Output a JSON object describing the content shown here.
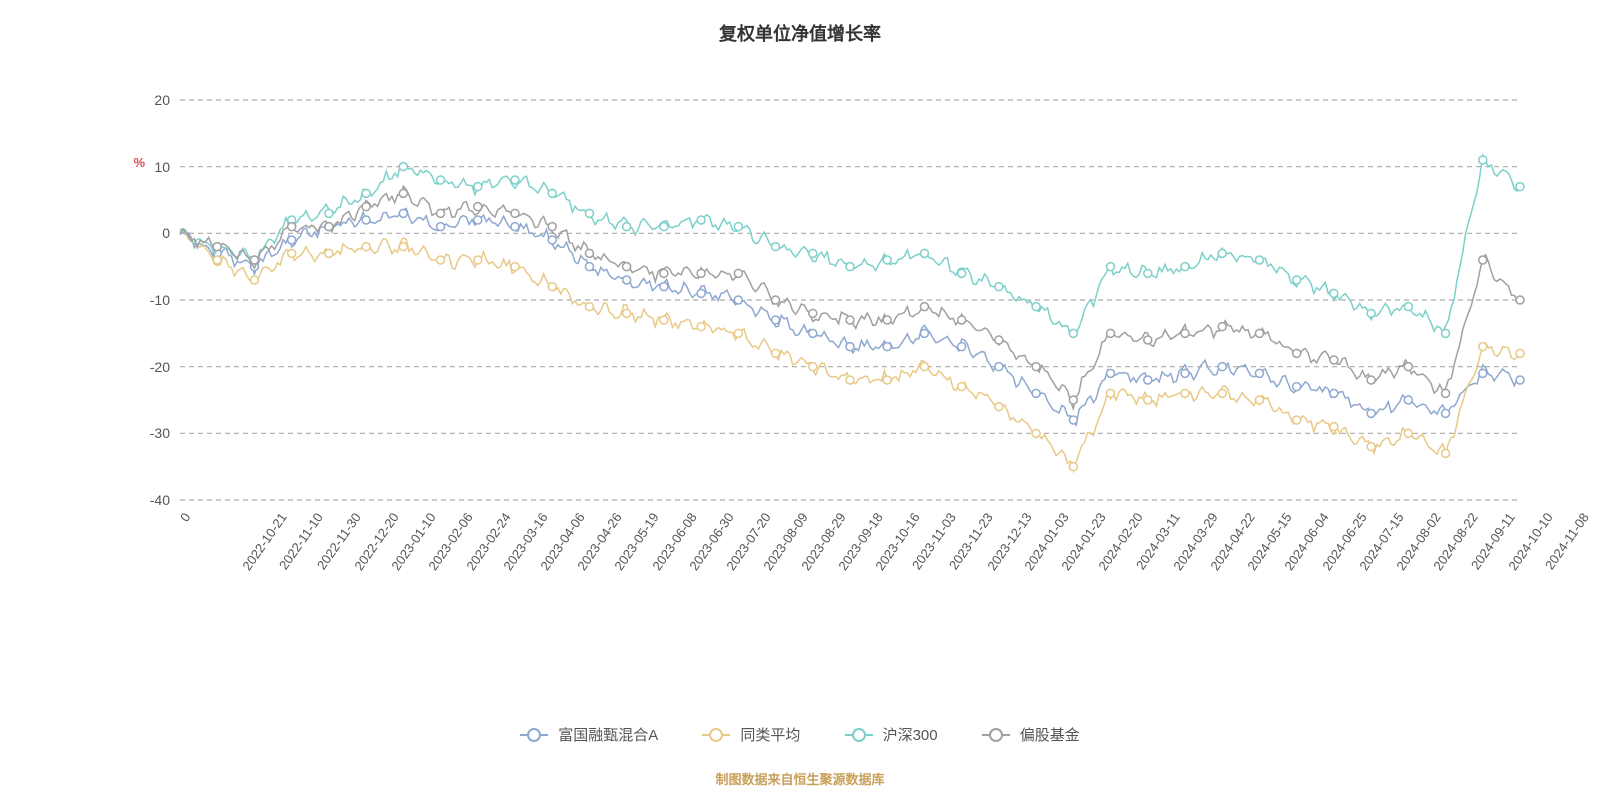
{
  "title": "复权单位净值增长率",
  "y_unit": "%",
  "footer": "制图数据来自恒生聚源数据库",
  "chart": {
    "type": "line",
    "ylim": [
      -40,
      20
    ],
    "ytick_step": 10,
    "yticks": [
      20,
      10,
      0,
      -10,
      -20,
      -30,
      -40
    ],
    "background": "#ffffff",
    "grid_color": "#aaaaaa",
    "grid_dash": "5,4",
    "title_fontsize": 18,
    "label_fontsize": 14,
    "x_categories": [
      "0",
      "2022-10-21",
      "2022-11-10",
      "2022-11-30",
      "2022-12-20",
      "2023-01-10",
      "2023-02-06",
      "2023-02-24",
      "2023-03-16",
      "2023-04-06",
      "2023-04-26",
      "2023-05-19",
      "2023-06-08",
      "2023-06-30",
      "2023-07-20",
      "2023-08-09",
      "2023-08-29",
      "2023-09-18",
      "2023-10-16",
      "2023-11-03",
      "2023-11-23",
      "2023-12-13",
      "2024-01-03",
      "2024-01-23",
      "2024-02-20",
      "2024-03-11",
      "2024-03-29",
      "2024-04-22",
      "2024-05-15",
      "2024-06-04",
      "2024-06-25",
      "2024-07-15",
      "2024-08-02",
      "2024-08-22",
      "2024-09-11",
      "2024-10-10",
      "2024-11-08"
    ],
    "series": [
      {
        "name": "富国融甄混合A",
        "color": "#8fa8d0",
        "marker_fill": "#ffffff",
        "line_width": 1.5,
        "marker_size": 4,
        "values": [
          0,
          -3,
          -5,
          -1,
          1,
          2,
          3,
          1,
          2,
          1,
          -1,
          -5,
          -7,
          -8,
          -9,
          -10,
          -13,
          -15,
          -17,
          -17,
          -15,
          -17,
          -20,
          -24,
          -28,
          -21,
          -22,
          -21,
          -20,
          -21,
          -23,
          -24,
          -27,
          -25,
          -27,
          -21,
          -22
        ]
      },
      {
        "name": "同类平均",
        "color": "#e8c987",
        "marker_fill": "#ffffff",
        "line_width": 1.5,
        "marker_size": 4,
        "values": [
          0,
          -4,
          -7,
          -3,
          -3,
          -2,
          -2,
          -4,
          -4,
          -5,
          -8,
          -11,
          -12,
          -13,
          -14,
          -15,
          -18,
          -20,
          -22,
          -22,
          -20,
          -23,
          -26,
          -30,
          -35,
          -24,
          -25,
          -24,
          -24,
          -25,
          -28,
          -29,
          -32,
          -30,
          -33,
          -17,
          -18
        ]
      },
      {
        "name": "沪深300",
        "color": "#7dd0ca",
        "marker_fill": "#ffffff",
        "line_width": 1.5,
        "marker_size": 4,
        "values": [
          0,
          -2,
          -4,
          2,
          3,
          6,
          10,
          8,
          7,
          8,
          6,
          3,
          1,
          1,
          2,
          1,
          -2,
          -3,
          -5,
          -4,
          -3,
          -6,
          -8,
          -11,
          -15,
          -5,
          -6,
          -5,
          -3,
          -4,
          -7,
          -9,
          -12,
          -11,
          -15,
          11,
          7
        ]
      },
      {
        "name": "偏股基金",
        "color": "#a0a0a0",
        "marker_fill": "#ffffff",
        "line_width": 1.5,
        "marker_size": 4,
        "values": [
          0,
          -2,
          -4,
          1,
          1,
          4,
          6,
          3,
          4,
          3,
          1,
          -3,
          -5,
          -6,
          -6,
          -6,
          -10,
          -12,
          -13,
          -13,
          -11,
          -13,
          -16,
          -20,
          -25,
          -15,
          -16,
          -15,
          -14,
          -15,
          -18,
          -19,
          -22,
          -20,
          -24,
          -4,
          -10
        ]
      }
    ]
  },
  "legend_labels": {
    "s0": "富国融甄混合A",
    "s1": "同类平均",
    "s2": "沪深300",
    "s3": "偏股基金"
  }
}
